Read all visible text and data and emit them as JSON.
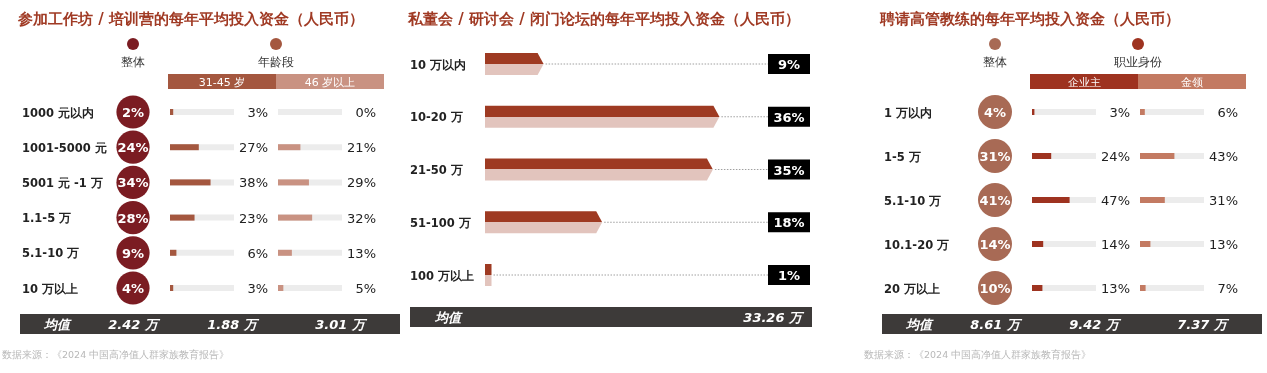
{
  "chart_data": [
    {
      "type": "other",
      "title": "参加工作坊 / 培训营的每年平均投入资金（人民币）",
      "legend": "top",
      "categories": [
        "1000 元以内",
        "1001-5000 元",
        "5001 元 -1 万",
        "1.1-5 万",
        "5.1-10 万",
        "10 万以上"
      ],
      "series": [
        {
          "name": "整体",
          "color": "#7b1c22",
          "values": [
            2,
            24,
            34,
            28,
            9,
            4
          ],
          "value_labels": [
            "2%",
            "24%",
            "34%",
            "28%",
            "9%",
            "4%"
          ]
        }
      ],
      "annotations": [
        "均值",
        "2.42 万"
      ]
    },
    {
      "type": "bar",
      "orientation": "horizontal",
      "legend_title": "年龄段",
      "legend": "top",
      "grid": "y",
      "series": [
        {
          "name": "31-45 岁",
          "color": "#a4573f",
          "values": [
            3,
            27,
            38,
            23,
            6,
            3
          ],
          "value_labels": [
            "3%",
            "27%",
            "38%",
            "23%",
            "6%",
            "3%"
          ]
        }
      ],
      "xlim": [
        0,
        60
      ],
      "annotations": [
        "1.88 万"
      ]
    },
    {
      "type": "bar",
      "orientation": "horizontal",
      "legend": "top",
      "grid": "y",
      "series": [
        {
          "name": "46 岁以上",
          "color": "#c99282",
          "values": [
            0,
            21,
            29,
            32,
            13,
            5
          ],
          "value_labels": [
            "0%",
            "21%",
            "29%",
            "32%",
            "13%",
            "5%"
          ]
        }
      ],
      "xlim": [
        0,
        60
      ],
      "annotations": [
        "3.01 万",
        "数据来源：《2024 中国高净值人群家族教育报告》"
      ]
    },
    {
      "type": "bar",
      "orientation": "horizontal",
      "title": "私董会 / 研讨会 / 闭门论坛的每年平均投入资金（人民币）",
      "categories": [
        "10 万以内",
        "10-20 万",
        "21-50 万",
        "51-100 万",
        "100 万以上"
      ],
      "values": [
        9,
        36,
        35,
        18,
        1
      ],
      "value_labels": [
        "9%",
        "36%",
        "35%",
        "18%",
        "1%"
      ],
      "color": "#9e3a22",
      "xlim": [
        0,
        43
      ],
      "annotations": [
        "均值",
        "33.26 万"
      ]
    },
    {
      "type": "other",
      "title": "聘请高管教练的每年平均投入资金（人民币）",
      "legend": "top",
      "categories": [
        "1 万以内",
        "1-5 万",
        "5.1-10 万",
        "10.1-20 万",
        "20 万以上"
      ],
      "series": [
        {
          "name": "整体",
          "color": "#a86a55",
          "values": [
            4,
            31,
            41,
            14,
            10
          ],
          "value_labels": [
            "4%",
            "31%",
            "41%",
            "14%",
            "10%"
          ]
        }
      ],
      "annotations": [
        "均值",
        "8.61 万"
      ]
    },
    {
      "type": "bar",
      "orientation": "horizontal",
      "legend_title": "职业身份",
      "legend": "top",
      "grid": "y",
      "series": [
        {
          "name": "企业主",
          "color": "#9e3320",
          "values": [
            3,
            24,
            47,
            14,
            13
          ],
          "value_labels": [
            "3%",
            "24%",
            "47%",
            "14%",
            "13%"
          ]
        }
      ],
      "xlim": [
        0,
        80
      ],
      "annotations": [
        "9.42 万"
      ]
    },
    {
      "type": "bar",
      "orientation": "horizontal",
      "legend": "top",
      "grid": "y",
      "series": [
        {
          "name": "金领",
          "color": "#c37a62",
          "values": [
            6,
            43,
            31,
            13,
            7
          ],
          "value_labels": [
            "6%",
            "43%",
            "31%",
            "13%",
            "7%"
          ]
        }
      ],
      "xlim": [
        0,
        80
      ],
      "annotations": [
        "7.37 万",
        "数据来源：《2024 中国高净值人群家族教育报告》"
      ]
    }
  ]
}
